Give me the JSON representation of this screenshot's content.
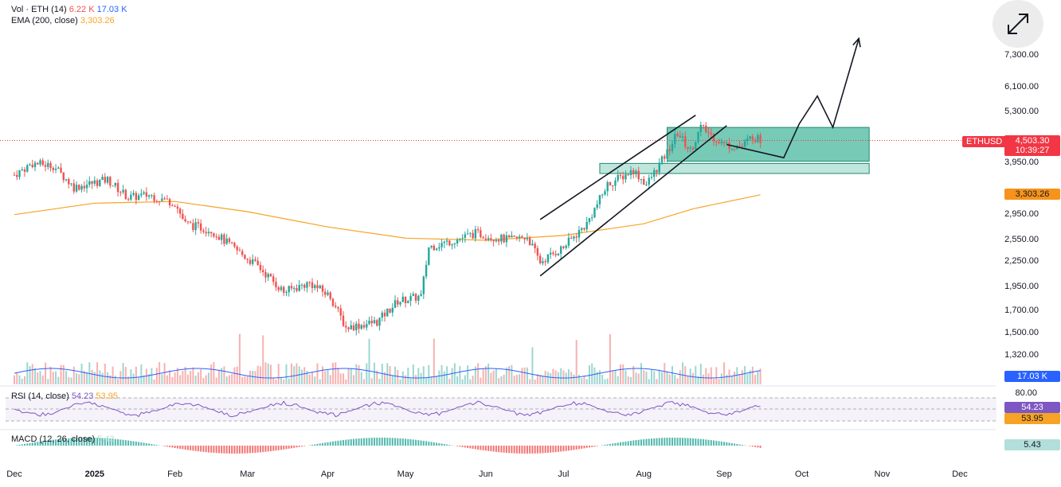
{
  "chart_data": {
    "type": "candlestick",
    "symbol": "ETHUSD",
    "indicators": {
      "volume": {
        "label": "Vol · ETH (14)",
        "value_down": "6.22 K",
        "value_ma": "17.03 K",
        "tag": "17.03 K"
      },
      "ema": {
        "label": "EMA (200, close)",
        "value": "3,303.26",
        "tag": "3,303.26"
      },
      "rsi": {
        "label": "RSI (14, close)",
        "value": "54.23",
        "ma": "53.95",
        "tag_rsi": "54.23",
        "tag_ma": "53.95",
        "upper": "80.00"
      },
      "macd": {
        "label": "MACD (12, 26, close)",
        "value": "5.43",
        "tag": "5.43"
      }
    },
    "last_price": {
      "value": "4,503.30",
      "countdown": "10:39:27",
      "label": "ETHUSD"
    },
    "y_ticks": [
      "7,300.00",
      "6,100.00",
      "5,300.00",
      "3,950.00",
      "2,950.00",
      "2,550.00",
      "2,250.00",
      "1,950.00",
      "1,700.00",
      "1,500.00",
      "1,320.00"
    ],
    "x_ticks": [
      "Dec",
      "2025",
      "Feb",
      "Mar",
      "Apr",
      "May",
      "Jun",
      "Jul",
      "Aug",
      "Sep",
      "Oct",
      "Nov",
      "Dec"
    ],
    "y_scale": "log",
    "ylim": [
      1250,
      8200
    ],
    "price_path": [
      [
        "2024-12-01",
        3700
      ],
      [
        "2024-12-08",
        3950
      ],
      [
        "2024-12-16",
        3900
      ],
      [
        "2024-12-24",
        3450
      ],
      [
        "2025-01-06",
        3600
      ],
      [
        "2025-01-14",
        3250
      ],
      [
        "2025-01-22",
        3300
      ],
      [
        "2025-02-01",
        3150
      ],
      [
        "2025-02-05",
        2800
      ],
      [
        "2025-02-15",
        2700
      ],
      [
        "2025-02-25",
        2400
      ],
      [
        "2025-03-05",
        2200
      ],
      [
        "2025-03-15",
        1900
      ],
      [
        "2025-03-25",
        2000
      ],
      [
        "2025-04-02",
        1850
      ],
      [
        "2025-04-08",
        1550
      ],
      [
        "2025-04-20",
        1600
      ],
      [
        "2025-04-28",
        1800
      ],
      [
        "2025-05-07",
        1850
      ],
      [
        "2025-05-10",
        2450
      ],
      [
        "2025-05-20",
        2550
      ],
      [
        "2025-05-28",
        2650
      ],
      [
        "2025-06-10",
        2550
      ],
      [
        "2025-06-17",
        2600
      ],
      [
        "2025-06-22",
        2250
      ],
      [
        "2025-07-01",
        2450
      ],
      [
        "2025-07-10",
        2800
      ],
      [
        "2025-07-18",
        3500
      ],
      [
        "2025-07-28",
        3800
      ],
      [
        "2025-08-02",
        3500
      ],
      [
        "2025-08-10",
        4200
      ],
      [
        "2025-08-14",
        4700
      ],
      [
        "2025-08-19",
        4250
      ],
      [
        "2025-08-23",
        4850
      ],
      [
        "2025-09-01",
        4400
      ],
      [
        "2025-09-08",
        4350
      ],
      [
        "2025-09-12",
        4620
      ],
      [
        "2025-09-15",
        4503
      ]
    ],
    "ema_path": [
      [
        "2024-12-01",
        2950
      ],
      [
        "2025-01-01",
        3150
      ],
      [
        "2025-02-01",
        3180
      ],
      [
        "2025-03-01",
        3000
      ],
      [
        "2025-04-01",
        2750
      ],
      [
        "2025-05-01",
        2580
      ],
      [
        "2025-06-01",
        2550
      ],
      [
        "2025-07-01",
        2620
      ],
      [
        "2025-08-01",
        2800
      ],
      [
        "2025-08-20",
        3050
      ],
      [
        "2025-09-15",
        3303
      ]
    ],
    "annotations": {
      "upper_zone": [
        4000,
        4850
      ],
      "lower_zone": [
        3730,
        3950
      ],
      "channel_upper": [
        [
          "2025-06-22",
          2870
        ],
        [
          "2025-08-21",
          5200
        ]
      ],
      "channel_lower": [
        [
          "2025-06-22",
          2080
        ],
        [
          "2025-09-02",
          4900
        ]
      ],
      "projection": [
        [
          "2025-09-02",
          4400
        ],
        [
          "2025-09-24",
          4080
        ],
        [
          "2025-09-30",
          4950
        ],
        [
          "2025-10-07",
          5800
        ],
        [
          "2025-10-13",
          4850
        ],
        [
          "2025-10-23",
          8050
        ]
      ]
    },
    "colors": {
      "up": "#26a69a",
      "down": "#ef5350",
      "ema": "#f7a325",
      "zone": "#49b89e",
      "rsi": "#7e57c2",
      "last": "#f23645",
      "vol_ma": "#2962ff"
    }
  }
}
